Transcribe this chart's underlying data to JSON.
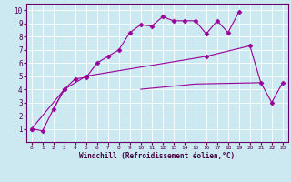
{
  "xlabel": "Windchill (Refroidissement éolien,°C)",
  "background_color": "#cce8f0",
  "line_color": "#990099",
  "xlim": [
    -0.5,
    23.5
  ],
  "ylim": [
    0,
    10.5
  ],
  "xticks": [
    0,
    1,
    2,
    3,
    4,
    5,
    6,
    7,
    8,
    9,
    10,
    11,
    12,
    13,
    14,
    15,
    16,
    17,
    18,
    19,
    20,
    21,
    22,
    23
  ],
  "yticks": [
    1,
    2,
    3,
    4,
    5,
    6,
    7,
    8,
    9,
    10
  ],
  "series_x": [
    [
      0,
      1,
      2,
      3,
      4,
      5,
      6,
      7,
      8,
      9,
      10,
      11,
      12,
      13,
      14,
      15,
      16,
      17,
      18,
      19
    ],
    [
      0,
      3,
      5,
      16,
      20,
      21,
      22,
      23
    ],
    [
      10,
      15,
      21
    ],
    [
      2,
      3
    ]
  ],
  "series_y": [
    [
      1.0,
      0.85,
      2.5,
      4.0,
      4.8,
      4.9,
      6.0,
      6.5,
      7.0,
      8.3,
      8.9,
      8.8,
      9.5,
      9.2,
      9.2,
      9.2,
      8.2,
      9.2,
      8.3,
      9.9
    ],
    [
      1.0,
      4.0,
      5.0,
      6.5,
      7.3,
      4.5,
      3.0,
      4.5
    ],
    [
      4.0,
      4.4,
      4.5
    ],
    [
      2.5,
      4.0
    ]
  ],
  "series_markers": [
    true,
    true,
    false,
    false
  ],
  "marker_style": "D",
  "marker_size": 2.5
}
